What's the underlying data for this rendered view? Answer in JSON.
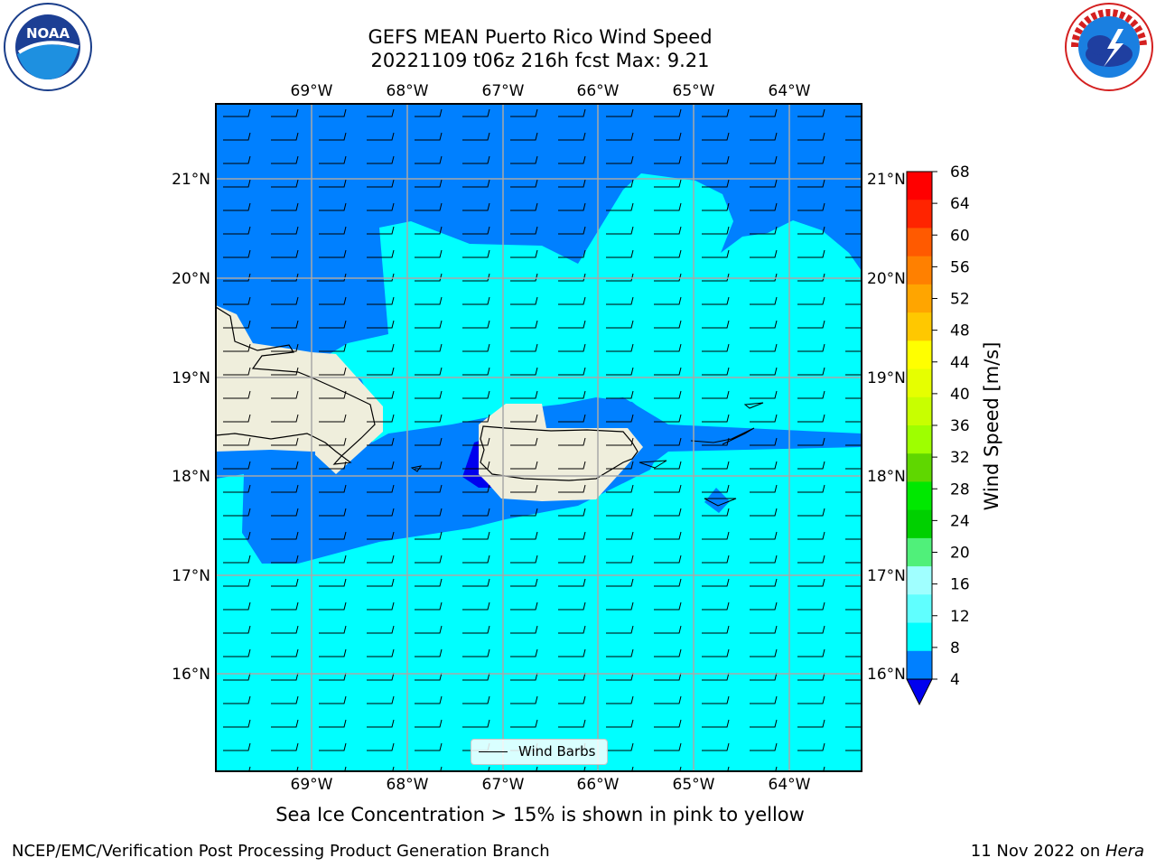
{
  "title": {
    "line1": "GEFS MEAN Puerto Rico Wind Speed",
    "line2": "20221109 t06z 216h fcst   Max: 9.21"
  },
  "logos": {
    "left": {
      "icon": "noaa-logo",
      "text": "NOAA"
    },
    "right": {
      "icon": "nws-logo",
      "text": "NATIONAL WEATHER SERVICE"
    }
  },
  "map": {
    "lon_labels": [
      "69°W",
      "68°W",
      "67°W",
      "66°W",
      "65°W",
      "64°W"
    ],
    "lat_labels": [
      "21°N",
      "20°N",
      "19°N",
      "18°N",
      "17°N",
      "16°N"
    ],
    "legend_label": "Wind Barbs",
    "colors": {
      "land": "#efeedc",
      "calm_4_8": "#0080ff",
      "band_8_12": "#00ffff",
      "below_4": "#0000ee"
    }
  },
  "colorbar": {
    "title": "Wind Speed [m/s]",
    "tick_labels": [
      "68",
      "64",
      "60",
      "56",
      "52",
      "48",
      "44",
      "40",
      "36",
      "32",
      "28",
      "24",
      "20",
      "16",
      "12",
      "8",
      "4"
    ],
    "colors_top_to_bottom": [
      "#ff0000",
      "#ff2400",
      "#ff5a00",
      "#ff8000",
      "#ffa500",
      "#ffc800",
      "#ffff00",
      "#e6ff00",
      "#c8ff00",
      "#9eff00",
      "#5fd700",
      "#00e800",
      "#00d000",
      "#50f07a",
      "#a0ffff",
      "#60ffff",
      "#00ffff",
      "#0080ff"
    ],
    "extend_color": "#0000ee"
  },
  "bottom_note": "Sea Ice Concentration > 15% is shown in pink to yellow",
  "footer": {
    "left": "NCEP/EMC/Verification Post Processing Product Generation Branch",
    "right_prefix": "11 Nov 2022 on ",
    "right_machine": "Hera"
  }
}
